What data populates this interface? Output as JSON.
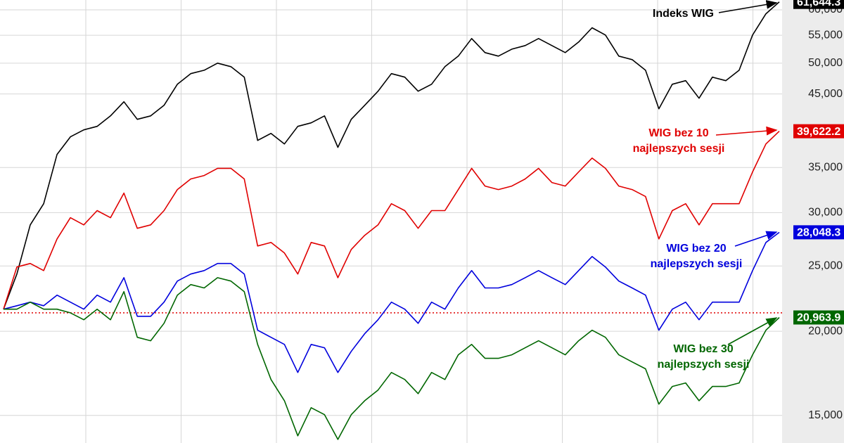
{
  "chart_data": {
    "type": "line",
    "log_scale": true,
    "grid": true,
    "ylim": [
      13650,
      62050
    ],
    "yticks": [
      {
        "value": 15000,
        "label": "15,000"
      },
      {
        "value": 20000,
        "label": "20,000"
      },
      {
        "value": 25000,
        "label": "25,000"
      },
      {
        "value": 30000,
        "label": "30,000"
      },
      {
        "value": 35000,
        "label": "35,000"
      },
      {
        "value": 45000,
        "label": "45,000"
      },
      {
        "value": 50000,
        "label": "50,000"
      },
      {
        "value": 55000,
        "label": "55,000"
      },
      {
        "value": 60000,
        "label": "60,000"
      }
    ],
    "reference_line": {
      "value": 21300,
      "color": "#e00000"
    },
    "series": [
      {
        "name_lines": [
          "Indeks WIG"
        ],
        "color": "#000000",
        "end_label": "61,644.3",
        "values": [
          21564,
          24320,
          28770,
          30930,
          36600,
          38870,
          39810,
          40290,
          41760,
          43820,
          41270,
          41760,
          43290,
          46530,
          48240,
          48810,
          50000,
          49410,
          47670,
          38400,
          39330,
          37940,
          40290,
          40770,
          41760,
          37500,
          41270,
          43290,
          45430,
          48240,
          47670,
          45430,
          46530,
          49410,
          51220,
          54390,
          51840,
          51220,
          52460,
          53100,
          54390,
          53100,
          51840,
          53740,
          56430,
          55050,
          51220,
          50610,
          48810,
          42780,
          46530,
          47100,
          44350,
          47670,
          47100,
          48810,
          55050,
          59200,
          61644.3
        ]
      },
      {
        "name_lines": [
          "WIG bez 10",
          "najlepszych sesji"
        ],
        "color": "#e00000",
        "end_label": "39,622.2",
        "values": [
          21564,
          24910,
          25210,
          24610,
          27420,
          29480,
          28770,
          30210,
          29480,
          32070,
          28430,
          28770,
          30210,
          32460,
          33660,
          34060,
          34900,
          34900,
          33660,
          26770,
          27090,
          26130,
          24320,
          27090,
          26770,
          24020,
          26450,
          27760,
          28770,
          30930,
          30210,
          28430,
          30210,
          30210,
          32460,
          34900,
          32850,
          32460,
          32850,
          33660,
          34900,
          33250,
          32850,
          34480,
          36150,
          34900,
          32850,
          32460,
          31700,
          27420,
          30210,
          30930,
          28770,
          30930,
          30930,
          30930,
          34480,
          37940,
          39622.2
        ]
      },
      {
        "name_lines": [
          "WIG bez 20",
          "najlepszych sesji"
        ],
        "color": "#0000dd",
        "end_label": "28,048.3",
        "values": [
          21564,
          21820,
          22090,
          21820,
          22630,
          22090,
          21564,
          22630,
          22090,
          24020,
          21050,
          21050,
          22090,
          23740,
          24320,
          24610,
          25210,
          25210,
          24320,
          20070,
          19590,
          19120,
          17370,
          19120,
          18900,
          17370,
          18670,
          19830,
          20800,
          22090,
          21564,
          20550,
          22090,
          21564,
          23190,
          24610,
          23190,
          23190,
          23460,
          24020,
          24610,
          24020,
          23460,
          24610,
          25820,
          24910,
          23740,
          23190,
          22630,
          20070,
          21564,
          22090,
          20800,
          22090,
          22090,
          22090,
          24610,
          27090,
          28048.3
        ]
      },
      {
        "name_lines": [
          "WIG bez 30",
          "najlepszych sesji"
        ],
        "color": "#006600",
        "end_label": "20,963.9",
        "values": [
          21564,
          21564,
          22090,
          21564,
          21564,
          21300,
          20800,
          21564,
          20800,
          22900,
          19590,
          19360,
          20550,
          22630,
          23460,
          23190,
          24020,
          23740,
          22900,
          19120,
          16960,
          15770,
          13990,
          15400,
          15040,
          13820,
          15040,
          15770,
          16360,
          17370,
          16960,
          16160,
          17370,
          16960,
          18450,
          19120,
          18230,
          18230,
          18450,
          18900,
          19360,
          18900,
          18450,
          19360,
          20070,
          19590,
          18450,
          18010,
          17590,
          15590,
          16560,
          16760,
          15770,
          16560,
          16560,
          16760,
          18450,
          20070,
          20963.9
        ]
      }
    ]
  }
}
